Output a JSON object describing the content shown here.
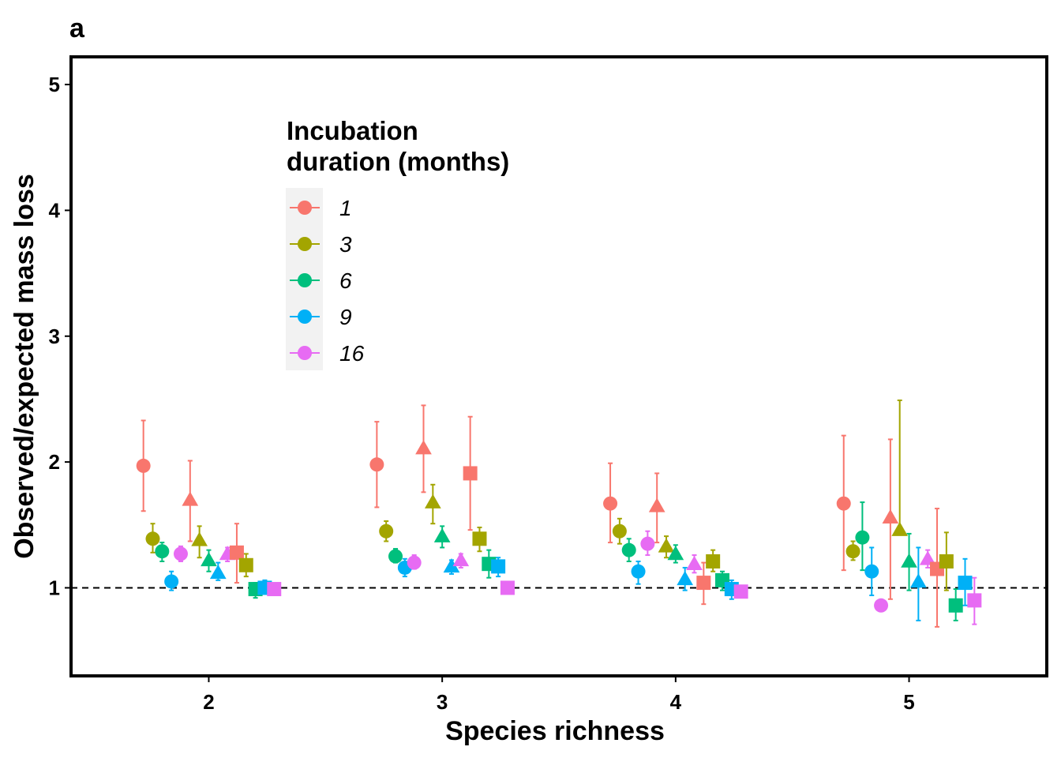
{
  "chart_data": {
    "type": "scatter",
    "panel_label": "a",
    "xlabel": "Species richness",
    "ylabel": "Observed/expected mass loss",
    "x_categories": [
      2,
      3,
      4,
      5
    ],
    "xlim": [
      1.41,
      5.59
    ],
    "ylim": [
      0.3,
      5.22
    ],
    "y_ticks": [
      1,
      2,
      3,
      4,
      5
    ],
    "reference_line": {
      "y": 1,
      "style": "dashed"
    },
    "grid": false,
    "legend": {
      "title_lines": [
        "Incubation",
        "duration (months)"
      ],
      "placement": "top-left",
      "entries": [
        "1",
        "3",
        "6",
        "9",
        "16"
      ]
    },
    "colors": {
      "1": "#F8766D",
      "3": "#A3A500",
      "6": "#00BF7D",
      "9": "#00B0F6",
      "16": "#E76BF3"
    },
    "shape_order": [
      "circle",
      "triangle",
      "square"
    ],
    "durations": [
      "1",
      "3",
      "6",
      "9",
      "16"
    ],
    "groups": [
      {
        "richness": 2,
        "points": [
          {
            "shape": "circle",
            "duration": "1",
            "mean": 1.97,
            "lo": 1.61,
            "hi": 2.33
          },
          {
            "shape": "circle",
            "duration": "3",
            "mean": 1.39,
            "lo": 1.28,
            "hi": 1.51
          },
          {
            "shape": "circle",
            "duration": "6",
            "mean": 1.29,
            "lo": 1.21,
            "hi": 1.36
          },
          {
            "shape": "circle",
            "duration": "9",
            "mean": 1.05,
            "lo": 0.98,
            "hi": 1.13
          },
          {
            "shape": "circle",
            "duration": "16",
            "mean": 1.27,
            "lo": 1.21,
            "hi": 1.33
          },
          {
            "shape": "triangle",
            "duration": "1",
            "mean": 1.7,
            "lo": 1.37,
            "hi": 2.01
          },
          {
            "shape": "triangle",
            "duration": "3",
            "mean": 1.38,
            "lo": 1.24,
            "hi": 1.49
          },
          {
            "shape": "triangle",
            "duration": "6",
            "mean": 1.22,
            "lo": 1.13,
            "hi": 1.3
          },
          {
            "shape": "triangle",
            "duration": "9",
            "mean": 1.12,
            "lo": 1.06,
            "hi": 1.2
          },
          {
            "shape": "triangle",
            "duration": "16",
            "mean": 1.27,
            "lo": 1.21,
            "hi": 1.32
          },
          {
            "shape": "square",
            "duration": "1",
            "mean": 1.28,
            "lo": 1.04,
            "hi": 1.51
          },
          {
            "shape": "square",
            "duration": "3",
            "mean": 1.18,
            "lo": 1.09,
            "hi": 1.27
          },
          {
            "shape": "square",
            "duration": "6",
            "mean": 0.99,
            "lo": 0.92,
            "hi": 1.04
          },
          {
            "shape": "square",
            "duration": "9",
            "mean": 1.0,
            "lo": 0.95,
            "hi": 1.06
          },
          {
            "shape": "square",
            "duration": "16",
            "mean": 0.99,
            "lo": 0.97,
            "hi": 1.02
          }
        ]
      },
      {
        "richness": 3,
        "points": [
          {
            "shape": "circle",
            "duration": "1",
            "mean": 1.98,
            "lo": 1.64,
            "hi": 2.32
          },
          {
            "shape": "circle",
            "duration": "3",
            "mean": 1.45,
            "lo": 1.37,
            "hi": 1.53
          },
          {
            "shape": "circle",
            "duration": "6",
            "mean": 1.25,
            "lo": 1.2,
            "hi": 1.31
          },
          {
            "shape": "circle",
            "duration": "9",
            "mean": 1.16,
            "lo": 1.09,
            "hi": 1.23
          },
          {
            "shape": "circle",
            "duration": "16",
            "mean": 1.2,
            "lo": 1.15,
            "hi": 1.26
          },
          {
            "shape": "triangle",
            "duration": "1",
            "mean": 2.11,
            "lo": 1.76,
            "hi": 2.45
          },
          {
            "shape": "triangle",
            "duration": "3",
            "mean": 1.68,
            "lo": 1.51,
            "hi": 1.82
          },
          {
            "shape": "triangle",
            "duration": "6",
            "mean": 1.41,
            "lo": 1.32,
            "hi": 1.49
          },
          {
            "shape": "triangle",
            "duration": "9",
            "mean": 1.17,
            "lo": 1.11,
            "hi": 1.22
          },
          {
            "shape": "triangle",
            "duration": "16",
            "mean": 1.22,
            "lo": 1.16,
            "hi": 1.27
          },
          {
            "shape": "square",
            "duration": "1",
            "mean": 1.91,
            "lo": 1.46,
            "hi": 2.36
          },
          {
            "shape": "square",
            "duration": "3",
            "mean": 1.39,
            "lo": 1.29,
            "hi": 1.48
          },
          {
            "shape": "square",
            "duration": "6",
            "mean": 1.19,
            "lo": 1.08,
            "hi": 1.3
          },
          {
            "shape": "square",
            "duration": "9",
            "mean": 1.17,
            "lo": 1.09,
            "hi": 1.24
          },
          {
            "shape": "square",
            "duration": "16",
            "mean": 1.0,
            "lo": 0.98,
            "hi": 1.03
          }
        ]
      },
      {
        "richness": 4,
        "points": [
          {
            "shape": "circle",
            "duration": "1",
            "mean": 1.67,
            "lo": 1.36,
            "hi": 1.99
          },
          {
            "shape": "circle",
            "duration": "3",
            "mean": 1.45,
            "lo": 1.35,
            "hi": 1.55
          },
          {
            "shape": "circle",
            "duration": "6",
            "mean": 1.3,
            "lo": 1.21,
            "hi": 1.39
          },
          {
            "shape": "circle",
            "duration": "9",
            "mean": 1.13,
            "lo": 1.03,
            "hi": 1.21
          },
          {
            "shape": "circle",
            "duration": "16",
            "mean": 1.35,
            "lo": 1.26,
            "hi": 1.45
          },
          {
            "shape": "triangle",
            "duration": "1",
            "mean": 1.65,
            "lo": 1.36,
            "hi": 1.91
          },
          {
            "shape": "triangle",
            "duration": "3",
            "mean": 1.33,
            "lo": 1.24,
            "hi": 1.41
          },
          {
            "shape": "triangle",
            "duration": "6",
            "mean": 1.27,
            "lo": 1.2,
            "hi": 1.34
          },
          {
            "shape": "triangle",
            "duration": "9",
            "mean": 1.07,
            "lo": 0.98,
            "hi": 1.16
          },
          {
            "shape": "triangle",
            "duration": "16",
            "mean": 1.19,
            "lo": 1.12,
            "hi": 1.26
          },
          {
            "shape": "square",
            "duration": "1",
            "mean": 1.04,
            "lo": 0.87,
            "hi": 1.2
          },
          {
            "shape": "square",
            "duration": "3",
            "mean": 1.21,
            "lo": 1.13,
            "hi": 1.3
          },
          {
            "shape": "square",
            "duration": "6",
            "mean": 1.06,
            "lo": 0.98,
            "hi": 1.13
          },
          {
            "shape": "square",
            "duration": "9",
            "mean": 0.99,
            "lo": 0.91,
            "hi": 1.06
          },
          {
            "shape": "square",
            "duration": "16",
            "mean": 0.97,
            "lo": 0.93,
            "hi": 1.01
          }
        ]
      },
      {
        "richness": 5,
        "points": [
          {
            "shape": "circle",
            "duration": "1",
            "mean": 1.67,
            "lo": 1.14,
            "hi": 2.21
          },
          {
            "shape": "circle",
            "duration": "3",
            "mean": 1.29,
            "lo": 1.22,
            "hi": 1.37
          },
          {
            "shape": "circle",
            "duration": "6",
            "mean": 1.4,
            "lo": 1.14,
            "hi": 1.68
          },
          {
            "shape": "circle",
            "duration": "9",
            "mean": 1.13,
            "lo": 0.94,
            "hi": 1.32
          },
          {
            "shape": "circle",
            "duration": "16",
            "mean": 0.86,
            "lo": 0.84,
            "hi": 0.89
          },
          {
            "shape": "triangle",
            "duration": "1",
            "mean": 1.56,
            "lo": 0.91,
            "hi": 2.18
          },
          {
            "shape": "triangle",
            "duration": "3",
            "mean": 1.46,
            "lo": 1.42,
            "hi": 2.49
          },
          {
            "shape": "triangle",
            "duration": "6",
            "mean": 1.21,
            "lo": 0.98,
            "hi": 1.43
          },
          {
            "shape": "triangle",
            "duration": "9",
            "mean": 1.05,
            "lo": 0.74,
            "hi": 1.32
          },
          {
            "shape": "triangle",
            "duration": "16",
            "mean": 1.23,
            "lo": 1.16,
            "hi": 1.3
          },
          {
            "shape": "square",
            "duration": "1",
            "mean": 1.15,
            "lo": 0.69,
            "hi": 1.63
          },
          {
            "shape": "square",
            "duration": "3",
            "mean": 1.21,
            "lo": 0.98,
            "hi": 1.44
          },
          {
            "shape": "square",
            "duration": "6",
            "mean": 0.86,
            "lo": 0.74,
            "hi": 0.99
          },
          {
            "shape": "square",
            "duration": "9",
            "mean": 1.04,
            "lo": 0.86,
            "hi": 1.23
          },
          {
            "shape": "square",
            "duration": "16",
            "mean": 0.9,
            "lo": 0.71,
            "hi": 1.08
          }
        ]
      }
    ]
  }
}
